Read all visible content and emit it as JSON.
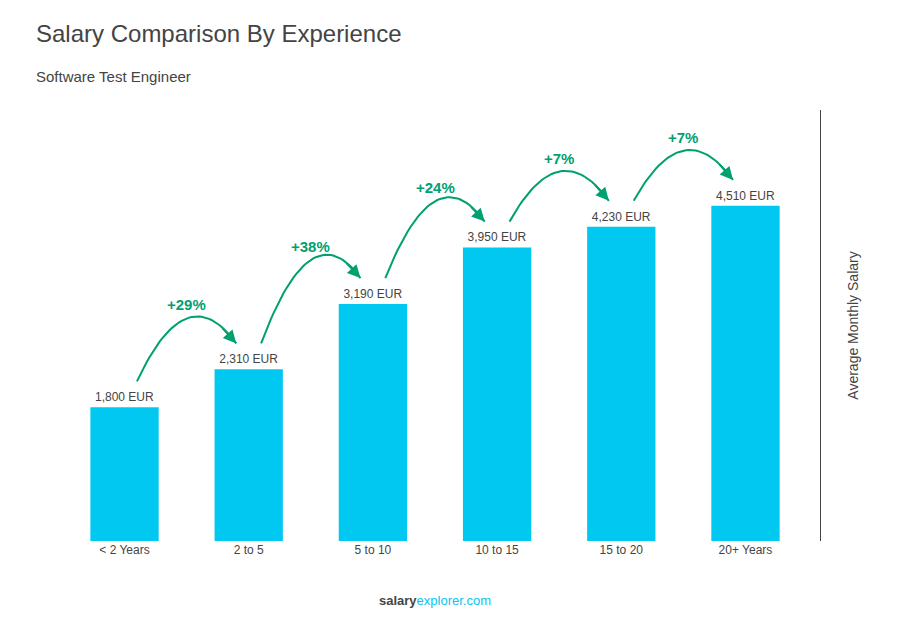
{
  "chart_data": {
    "type": "bar",
    "title": "Salary Comparison By Experience",
    "subtitle": "Software Test Engineer",
    "categories": [
      "< 2 Years",
      "2 to 5",
      "5 to 10",
      "10 to 15",
      "15 to 20",
      "20+ Years"
    ],
    "values": [
      1800,
      2310,
      3190,
      3950,
      4230,
      4510
    ],
    "value_labels": [
      "1,800 EUR",
      "2,310 EUR",
      "3,190 EUR",
      "3,950 EUR",
      "4,230 EUR",
      "4,510 EUR"
    ],
    "data_labels": true,
    "color": "#00c8f0",
    "ylabel": "Average Monthly Salary",
    "annotations": [
      "+29%",
      "+38%",
      "+24%",
      "+7%",
      "+7%"
    ],
    "source": [
      "salary",
      "explorer.com"
    ],
    "ylim": [
      0,
      5800
    ],
    "grid": false,
    "tick_labels": "x"
  }
}
